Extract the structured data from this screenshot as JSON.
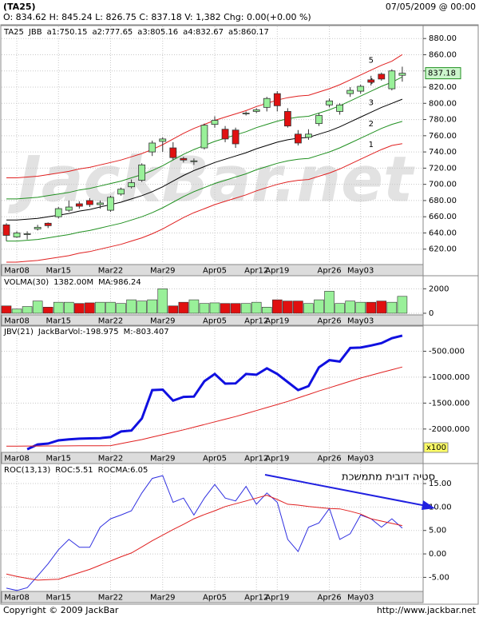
{
  "header": {
    "symbol": "(TA25)",
    "quote": "O: 834.62 H: 845.24 L: 826.75 C: 837.18 V: 1,382 Chg: 0.00(+0.00 %)",
    "datetime": "07/05/2009 @ 00:00"
  },
  "footer": {
    "copyright": "Copyright © 2009 JackBar",
    "url": "http://www.jackbar.net"
  },
  "watermark": "JackBar.net",
  "chart_data": [
    {
      "type": "candlestick",
      "title": "TA25",
      "indicator": "JBB",
      "categories": [
        null,
        "Mar08",
        null,
        null,
        null,
        "Mar15",
        null,
        null,
        null,
        null,
        "Mar22",
        null,
        null,
        null,
        null,
        "Mar29",
        null,
        null,
        null,
        null,
        "Apr05",
        null,
        null,
        null,
        "Apr12",
        null,
        "Apr19",
        null,
        null,
        null,
        null,
        "Apr26",
        null,
        null,
        "May03",
        null,
        null,
        null,
        null
      ],
      "open": [
        650,
        635,
        638,
        645,
        652,
        660,
        668,
        676,
        680,
        675,
        668,
        688,
        697,
        705,
        740,
        753,
        745,
        732,
        728,
        745,
        774,
        768,
        767,
        787,
        790,
        795,
        812,
        790,
        762,
        758,
        775,
        798,
        790,
        812,
        815,
        829,
        836,
        818,
        834.62
      ],
      "high": [
        652,
        642,
        642,
        650,
        653,
        672,
        680,
        679,
        683,
        680,
        686,
        696,
        706,
        726,
        754,
        758,
        752,
        734,
        732,
        775,
        784,
        772,
        770,
        790,
        794,
        808,
        815,
        794,
        767,
        768,
        788,
        806,
        800,
        820,
        823,
        834,
        838,
        842,
        845.24
      ],
      "low": [
        630,
        634,
        632,
        643,
        646,
        658,
        666,
        670,
        672,
        670,
        666,
        686,
        695,
        703,
        735,
        740,
        730,
        727,
        724,
        743,
        770,
        752,
        745,
        785,
        788,
        790,
        790,
        770,
        748,
        755,
        772,
        795,
        786,
        808,
        812,
        822,
        828,
        816,
        826.75
      ],
      "close": [
        637,
        640,
        639,
        647,
        649,
        670,
        672,
        673,
        675,
        677,
        684,
        694,
        702,
        724,
        751,
        756,
        733,
        730,
        729,
        773,
        779,
        756,
        750,
        788,
        792,
        806,
        797,
        772,
        751,
        762,
        785,
        803,
        798,
        816,
        821,
        826,
        830,
        840,
        837.18
      ],
      "up_color": "#99f099",
      "down_color": "#e01010",
      "series": [
        {
          "name": "a1:750.15",
          "color": "#e02020",
          "values": [
            604,
            604,
            605,
            606,
            608,
            610,
            612,
            615,
            617,
            620,
            623,
            626,
            630,
            634,
            639,
            645,
            652,
            659,
            665,
            670,
            675,
            679,
            683,
            687,
            692,
            696,
            700,
            703,
            705,
            706,
            710,
            714,
            719,
            725,
            731,
            737,
            743,
            748,
            750.15
          ]
        },
        {
          "name": "a2:777.65",
          "color": "#209020",
          "values": [
            630,
            630,
            631,
            632,
            634,
            636,
            638,
            641,
            643,
            646,
            649,
            652,
            656,
            660,
            665,
            671,
            678,
            685,
            691,
            696,
            701,
            705,
            709,
            713,
            718,
            722,
            726,
            729,
            731,
            732,
            736,
            740,
            745,
            751,
            757,
            763,
            769,
            774,
            777.65
          ]
        },
        {
          "name": "a3:805.16",
          "color": "#000000",
          "values": [
            656,
            656,
            657,
            658,
            660,
            662,
            664,
            667,
            669,
            672,
            675,
            678,
            682,
            686,
            691,
            697,
            704,
            711,
            717,
            722,
            727,
            731,
            735,
            739,
            744,
            748,
            752,
            755,
            757,
            758,
            762,
            766,
            771,
            777,
            783,
            789,
            795,
            800,
            805.16
          ]
        },
        {
          "name": "a4:832.67",
          "color": "#209020",
          "values": [
            682,
            682,
            683,
            684,
            686,
            688,
            690,
            693,
            695,
            698,
            701,
            704,
            708,
            712,
            717,
            723,
            730,
            737,
            743,
            748,
            753,
            757,
            761,
            765,
            770,
            774,
            778,
            781,
            783,
            784,
            788,
            792,
            797,
            803,
            809,
            815,
            821,
            826,
            832.67
          ]
        },
        {
          "name": "a5:860.17",
          "color": "#e02020",
          "values": [
            708,
            708,
            709,
            710,
            712,
            714,
            716,
            719,
            721,
            724,
            727,
            730,
            734,
            738,
            743,
            749,
            756,
            763,
            769,
            774,
            779,
            783,
            787,
            791,
            796,
            800,
            804,
            807,
            809,
            810,
            814,
            818,
            823,
            829,
            835,
            841,
            847,
            852,
            860.17
          ]
        }
      ],
      "band_labels": [
        "1",
        "2",
        "3",
        "4",
        "5"
      ],
      "last_price": 837.18,
      "ylim": [
        601,
        895
      ],
      "yticks": [
        {
          "value": 620,
          "label": "620.00"
        },
        {
          "value": 640,
          "label": "640.00"
        },
        {
          "value": 660,
          "label": "660.00"
        },
        {
          "value": 680,
          "label": "680.00"
        },
        {
          "value": 700,
          "label": "700.00"
        },
        {
          "value": 720,
          "label": "720.00"
        },
        {
          "value": 740,
          "label": "740.00"
        },
        {
          "value": 760,
          "label": "760.00"
        },
        {
          "value": 780,
          "label": "780.00"
        },
        {
          "value": 800,
          "label": "800.00"
        },
        {
          "value": 820,
          "label": "820.00"
        },
        {
          "value": 840,
          "label": "840.00"
        },
        {
          "value": 860,
          "label": "860.00"
        },
        {
          "value": 880,
          "label": "880.00"
        }
      ],
      "grid": true
    },
    {
      "type": "bar",
      "title": "VOLMA(30)",
      "value_label": "1382.00M",
      "ma_label": "MA:986.24",
      "values": [
        600,
        350,
        550,
        1000,
        500,
        900,
        900,
        800,
        850,
        900,
        900,
        800,
        1100,
        1000,
        1100,
        2000,
        600,
        900,
        1100,
        800,
        850,
        800,
        800,
        800,
        900,
        500,
        1100,
        1000,
        1000,
        800,
        1100,
        1800,
        800,
        1000,
        900,
        900,
        1000,
        900,
        1382
      ],
      "ylim": [
        -133,
        3000
      ],
      "yticks": [
        0,
        2000
      ],
      "grid": true
    },
    {
      "type": "line",
      "title": "JBV(21)",
      "scale_label": "x100",
      "series": [
        {
          "name": "JackBarVol:-198.975",
          "color": "#1010e0",
          "width": 3,
          "values": [
            null,
            null,
            -2390,
            -2297,
            -2280,
            -2219,
            -2200,
            -2187,
            -2180,
            -2175,
            -2156,
            -2047,
            -2030,
            -1797,
            -1250,
            -1240,
            -1453,
            -1380,
            -1375,
            -1078,
            -938,
            -1125,
            -1120,
            -938,
            -953,
            -828,
            -938,
            -1094,
            -1250,
            -1172,
            -812,
            -672,
            -700,
            -437,
            -430,
            -390,
            -344,
            -250,
            -198.975
          ]
        },
        {
          "name": "M:-803.407",
          "color": "#e02020",
          "width": 1,
          "values": [
            -2330,
            -2330,
            -2329,
            -2328,
            -2327,
            -2326,
            -2325,
            -2324,
            -2323,
            -2322,
            -2320,
            -2281,
            -2242,
            -2203,
            -2156,
            -2110,
            -2063,
            -2016,
            -1965,
            -1914,
            -1862,
            -1811,
            -1760,
            -1702,
            -1644,
            -1585,
            -1527,
            -1469,
            -1401,
            -1334,
            -1266,
            -1204,
            -1141,
            -1079,
            -1016,
            -963,
            -909,
            -856,
            -803.407
          ]
        }
      ],
      "ylim": [
        -2450,
        -15
      ],
      "yticks": [
        {
          "value": -500,
          "label": "-500.000"
        },
        {
          "value": -1000,
          "label": "-1000.000"
        },
        {
          "value": -1500,
          "label": "-1500.000"
        },
        {
          "value": -2000,
          "label": "-2000.000"
        }
      ],
      "grid": true
    },
    {
      "type": "line",
      "title": "ROC(13,13)",
      "annotation": "סטיה דובית מתמשכת",
      "series": [
        {
          "name": "ROC:5.51",
          "color": "#3030e0",
          "width": 1,
          "values": [
            -7.3,
            -7.8,
            -7.2,
            -4.7,
            -2.1,
            0.9,
            3.1,
            1.4,
            1.4,
            5.7,
            7.5,
            8.3,
            9.2,
            13,
            16.1,
            16.7,
            11,
            11.9,
            8.3,
            11.9,
            14.8,
            11.9,
            11.3,
            14.4,
            10.6,
            13,
            11,
            3.1,
            0.5,
            5.7,
            6.6,
            9.7,
            3.1,
            4.3,
            8.3,
            7.5,
            5.7,
            7.5,
            5.51
          ]
        },
        {
          "name": "ROCMA:6.05",
          "color": "#e02020",
          "width": 1,
          "values": [
            -4.3,
            -4.8,
            -5.2,
            -5.6,
            -5.5,
            -5.4,
            -4.7,
            -4,
            -3.3,
            -2.4,
            -1.5,
            -0.6,
            0.2,
            1.5,
            2.8,
            4,
            5.2,
            6.3,
            7.5,
            8.4,
            9.2,
            10.1,
            10.7,
            11.3,
            11.9,
            12.5,
            11.6,
            10.6,
            10.4,
            10.1,
            9.9,
            9.7,
            9.6,
            9.1,
            8.5,
            7.5,
            7,
            6.5,
            6.05
          ]
        }
      ],
      "ylim": [
        -8,
        19.1
      ],
      "yticks": [
        {
          "value": 15,
          "label": "15.00"
        },
        {
          "value": 10,
          "label": "10.00"
        },
        {
          "value": 5,
          "label": "5.00"
        },
        {
          "value": 0,
          "label": "0.00"
        },
        {
          "value": -5,
          "label": "-5.00"
        }
      ],
      "grid": true
    }
  ]
}
